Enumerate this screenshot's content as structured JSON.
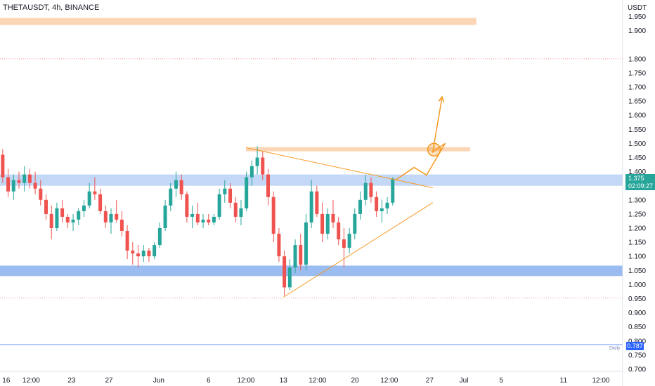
{
  "header": {
    "symbol_line": "THETAUSDT, 4h, BINANCE",
    "currency": "USDT"
  },
  "price_badge": {
    "price": "1.375",
    "countdown": "02:09:27"
  },
  "daily_badge": {
    "label": "Daily",
    "value": "0.787"
  },
  "colors": {
    "up": "#26a69a",
    "down": "#ef5350",
    "zone_blue": "#7aa6ec",
    "zone_orange": "#f7b57a",
    "drawing": "#f59a23",
    "daily_line": "#2962ff",
    "dotted_red": "#ef5350"
  },
  "chart_data": {
    "type": "candlestick",
    "title": "THETAUSDT, 4h, BINANCE",
    "ylabel": "USDT",
    "ylim": [
      0.69,
      1.985
    ],
    "y_ticks": [
      "1.950",
      "1.900",
      "1.800",
      "1.750",
      "1.700",
      "1.650",
      "1.600",
      "1.550",
      "1.500",
      "1.450",
      "1.400",
      "1.300",
      "1.250",
      "1.200",
      "1.150",
      "1.100",
      "1.050",
      "1.000",
      "0.950",
      "0.900",
      "0.850",
      "0.800",
      "0.750",
      "0.700"
    ],
    "x_ticks": [
      "16",
      "12:00",
      "23",
      "27",
      "Jun",
      "6",
      "12:00",
      "13",
      "12:00",
      "20",
      "12:00",
      "27",
      "Jul",
      "5",
      "11",
      "12:00"
    ],
    "x_range": [
      0,
      100
    ],
    "x_tick_positions": [
      1,
      5,
      11.5,
      17.5,
      25.5,
      33.5,
      39.5,
      45.5,
      51,
      57,
      62.5,
      69,
      74.5,
      80.5,
      90.5,
      96.5
    ],
    "zones": [
      {
        "name": "upper-resistance",
        "x0": 0,
        "x1": 76.5,
        "y0": 1.92,
        "y1": 1.945,
        "color": "orange"
      },
      {
        "name": "target-zone",
        "x0": 39.5,
        "x1": 75.5,
        "y0": 1.472,
        "y1": 1.487,
        "color": "orange"
      },
      {
        "name": "range-resistance",
        "x0": 0,
        "x1": 100,
        "y0": 1.35,
        "y1": 1.39,
        "color": "blue"
      },
      {
        "name": "range-support",
        "x0": 0,
        "x1": 100,
        "y0": 1.03,
        "y1": 1.067,
        "color": "blue"
      }
    ],
    "levels": [
      {
        "name": "dotted-1800",
        "value": 1.8,
        "style": "dotted"
      },
      {
        "name": "dotted-952",
        "value": 0.952,
        "style": "dotted"
      },
      {
        "name": "daily-787",
        "value": 0.787,
        "style": "solid"
      }
    ],
    "trendlines": [
      {
        "name": "descending-trendline",
        "points": [
          [
            39.5,
            1.485
          ],
          [
            69.5,
            1.343
          ]
        ]
      },
      {
        "name": "ascending-trendline",
        "points": [
          [
            45.5,
            0.955
          ],
          [
            69.5,
            1.29
          ]
        ]
      }
    ],
    "projection": [
      [
        63.5,
        1.37
      ],
      [
        66.5,
        1.415
      ],
      [
        68.5,
        1.388
      ],
      [
        71.5,
        1.5
      ],
      [
        69.5,
        1.47
      ],
      [
        71,
        1.665
      ]
    ],
    "projection_circle": {
      "x": 69.7,
      "y": 1.478
    },
    "candles": [
      [
        1.46,
        1.48,
        1.36,
        1.38
      ],
      [
        1.38,
        1.41,
        1.31,
        1.33
      ],
      [
        1.33,
        1.39,
        1.3,
        1.37
      ],
      [
        1.37,
        1.4,
        1.34,
        1.36
      ],
      [
        1.36,
        1.42,
        1.33,
        1.39
      ],
      [
        1.39,
        1.41,
        1.34,
        1.36
      ],
      [
        1.36,
        1.4,
        1.32,
        1.34
      ],
      [
        1.34,
        1.37,
        1.28,
        1.3
      ],
      [
        1.3,
        1.32,
        1.23,
        1.25
      ],
      [
        1.25,
        1.28,
        1.16,
        1.2
      ],
      [
        1.2,
        1.29,
        1.19,
        1.27
      ],
      [
        1.27,
        1.3,
        1.22,
        1.24
      ],
      [
        1.24,
        1.25,
        1.2,
        1.22
      ],
      [
        1.22,
        1.25,
        1.19,
        1.23
      ],
      [
        1.23,
        1.27,
        1.21,
        1.26
      ],
      [
        1.26,
        1.3,
        1.24,
        1.28
      ],
      [
        1.28,
        1.36,
        1.27,
        1.33
      ],
      [
        1.33,
        1.38,
        1.3,
        1.32
      ],
      [
        1.32,
        1.34,
        1.25,
        1.26
      ],
      [
        1.26,
        1.28,
        1.2,
        1.22
      ],
      [
        1.22,
        1.27,
        1.18,
        1.25
      ],
      [
        1.25,
        1.3,
        1.22,
        1.23
      ],
      [
        1.23,
        1.26,
        1.17,
        1.19
      ],
      [
        1.19,
        1.21,
        1.09,
        1.12
      ],
      [
        1.12,
        1.15,
        1.07,
        1.11
      ],
      [
        1.11,
        1.14,
        1.06,
        1.1
      ],
      [
        1.1,
        1.14,
        1.08,
        1.12
      ],
      [
        1.12,
        1.13,
        1.08,
        1.1
      ],
      [
        1.1,
        1.15,
        1.09,
        1.14
      ],
      [
        1.14,
        1.22,
        1.13,
        1.2
      ],
      [
        1.2,
        1.3,
        1.19,
        1.28
      ],
      [
        1.28,
        1.36,
        1.26,
        1.34
      ],
      [
        1.34,
        1.4,
        1.31,
        1.37
      ],
      [
        1.37,
        1.39,
        1.3,
        1.32
      ],
      [
        1.32,
        1.33,
        1.22,
        1.24
      ],
      [
        1.24,
        1.28,
        1.2,
        1.25
      ],
      [
        1.25,
        1.29,
        1.21,
        1.22
      ],
      [
        1.22,
        1.25,
        1.2,
        1.23
      ],
      [
        1.23,
        1.25,
        1.21,
        1.22
      ],
      [
        1.22,
        1.25,
        1.21,
        1.24
      ],
      [
        1.24,
        1.34,
        1.23,
        1.32
      ],
      [
        1.32,
        1.37,
        1.29,
        1.34
      ],
      [
        1.34,
        1.36,
        1.27,
        1.29
      ],
      [
        1.29,
        1.31,
        1.22,
        1.24
      ],
      [
        1.24,
        1.3,
        1.21,
        1.27
      ],
      [
        1.27,
        1.4,
        1.26,
        1.38
      ],
      [
        1.38,
        1.44,
        1.35,
        1.42
      ],
      [
        1.42,
        1.49,
        1.39,
        1.45
      ],
      [
        1.45,
        1.47,
        1.37,
        1.39
      ],
      [
        1.39,
        1.41,
        1.28,
        1.31
      ],
      [
        1.31,
        1.33,
        1.15,
        1.18
      ],
      [
        1.18,
        1.2,
        1.08,
        1.1
      ],
      [
        1.1,
        1.12,
        0.96,
        0.99
      ],
      [
        0.99,
        1.09,
        0.98,
        1.06
      ],
      [
        1.06,
        1.16,
        1.04,
        1.14
      ],
      [
        1.14,
        1.18,
        1.05,
        1.07
      ],
      [
        1.07,
        1.25,
        1.05,
        1.22
      ],
      [
        1.22,
        1.37,
        1.2,
        1.33
      ],
      [
        1.33,
        1.35,
        1.24,
        1.25
      ],
      [
        1.25,
        1.29,
        1.15,
        1.18
      ],
      [
        1.18,
        1.27,
        1.16,
        1.25
      ],
      [
        1.25,
        1.3,
        1.2,
        1.22
      ],
      [
        1.22,
        1.24,
        1.14,
        1.16
      ],
      [
        1.16,
        1.2,
        1.06,
        1.13
      ],
      [
        1.13,
        1.2,
        1.11,
        1.18
      ],
      [
        1.18,
        1.27,
        1.16,
        1.25
      ],
      [
        1.25,
        1.33,
        1.23,
        1.3
      ],
      [
        1.3,
        1.39,
        1.28,
        1.36
      ],
      [
        1.36,
        1.38,
        1.29,
        1.31
      ],
      [
        1.31,
        1.33,
        1.24,
        1.26
      ],
      [
        1.26,
        1.3,
        1.22,
        1.27
      ],
      [
        1.27,
        1.31,
        1.25,
        1.29
      ],
      [
        1.29,
        1.38,
        1.28,
        1.375
      ]
    ]
  }
}
